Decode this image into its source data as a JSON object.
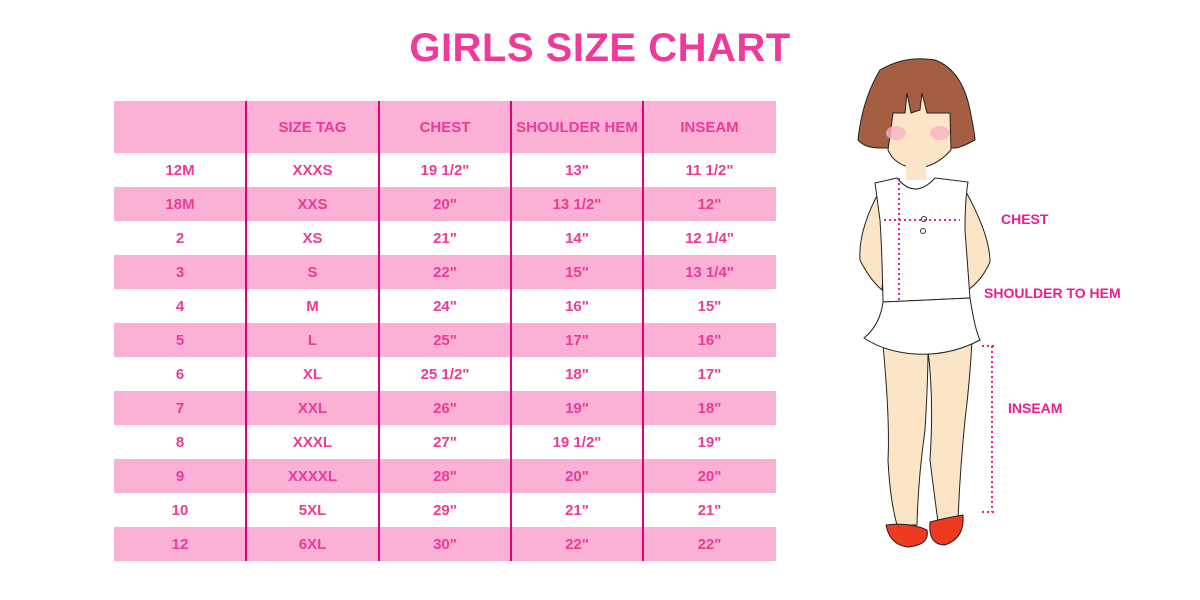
{
  "title": "GIRLS SIZE CHART",
  "table": {
    "headers": [
      "",
      "SIZE TAG",
      "CHEST",
      "SHOULDER HEM",
      "INSEAM"
    ],
    "rows": [
      [
        "12M",
        "XXXS",
        "19 1/2\"",
        "13\"",
        "11 1/2\""
      ],
      [
        "18M",
        "XXS",
        "20\"",
        "13 1/2\"",
        "12\""
      ],
      [
        "2",
        "XS",
        "21\"",
        "14\"",
        "12 1/4\""
      ],
      [
        "3",
        "S",
        "22\"",
        "15\"",
        "13 1/4\""
      ],
      [
        "4",
        "M",
        "24\"",
        "16\"",
        "15\""
      ],
      [
        "5",
        "L",
        "25\"",
        "17\"",
        "16\""
      ],
      [
        "6",
        "XL",
        "25 1/2\"",
        "18\"",
        "17\""
      ],
      [
        "7",
        "XXL",
        "26\"",
        "19\"",
        "18\""
      ],
      [
        "8",
        "XXXL",
        "27\"",
        "19 1/2\"",
        "19\""
      ],
      [
        "9",
        "XXXXL",
        "28\"",
        "20\"",
        "20\""
      ],
      [
        "10",
        "5XL",
        "29\"",
        "21\"",
        "21\""
      ],
      [
        "12",
        "6XL",
        "30\"",
        "22\"",
        "22\""
      ]
    ]
  },
  "figure": {
    "labels": {
      "chest": "CHEST",
      "shoulder_to_hem": "SHOULDER TO HEM",
      "inseam": "INSEAM"
    }
  },
  "colors": {
    "title": "#ef3a99",
    "row_pink": "#fbb1d6",
    "divider": "#e3007d",
    "measure": "#ec1c8c"
  }
}
